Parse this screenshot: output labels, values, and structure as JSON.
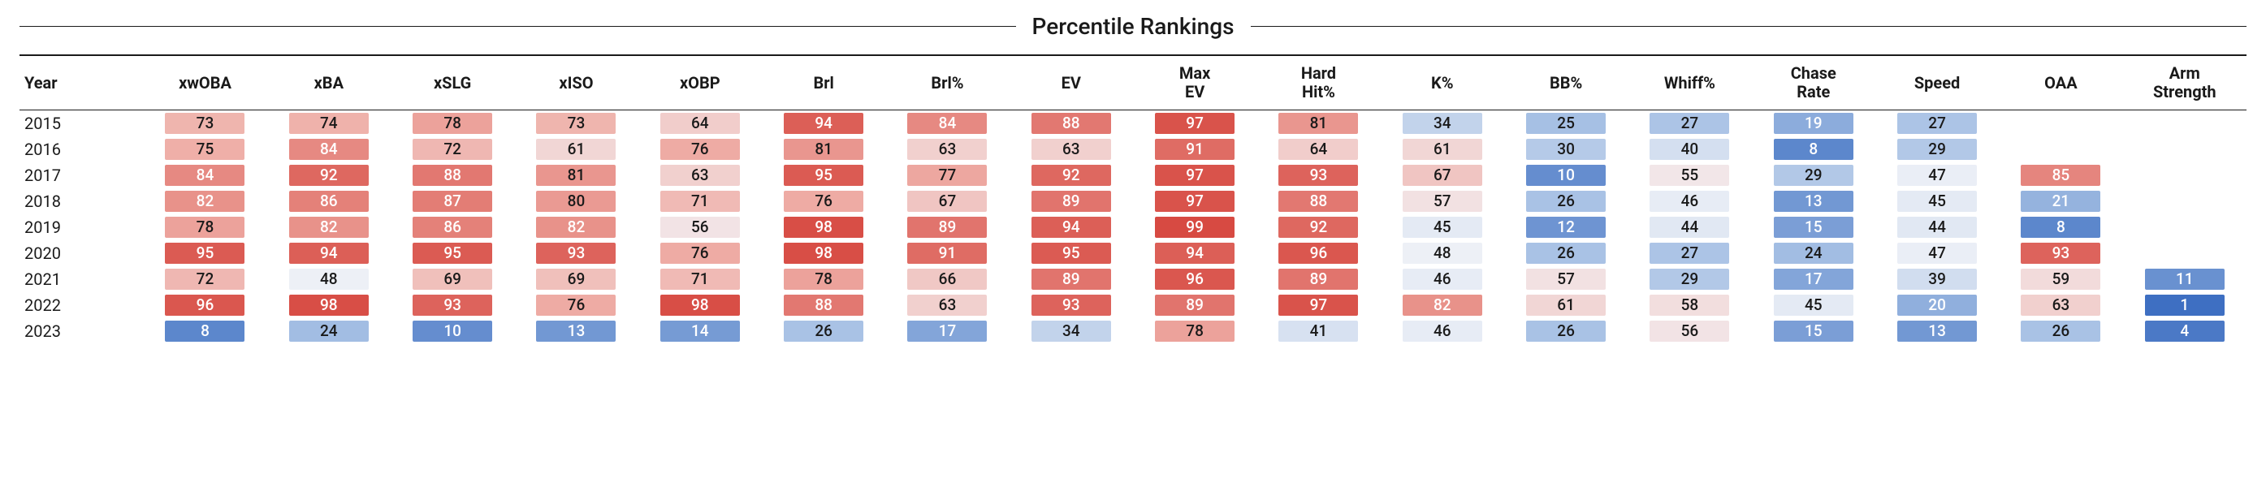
{
  "title": "Percentile Rankings",
  "columns": [
    "Year",
    "xwOBA",
    "xBA",
    "xSLG",
    "xISO",
    "xOBP",
    "Brl",
    "Brl%",
    "EV",
    "Max EV",
    "Hard Hit%",
    "K%",
    "BB%",
    "Whiff%",
    "Chase Rate",
    "Speed",
    "OAA",
    "Arm Strength"
  ],
  "rows": [
    {
      "year": "2015",
      "cells": [
        73,
        74,
        78,
        73,
        64,
        94,
        84,
        88,
        97,
        81,
        34,
        25,
        27,
        19,
        27,
        null,
        null
      ]
    },
    {
      "year": "2016",
      "cells": [
        75,
        84,
        72,
        61,
        76,
        81,
        63,
        63,
        91,
        64,
        61,
        30,
        40,
        8,
        29,
        null,
        null
      ]
    },
    {
      "year": "2017",
      "cells": [
        84,
        92,
        88,
        81,
        63,
        95,
        77,
        92,
        97,
        93,
        67,
        10,
        55,
        29,
        47,
        85,
        null
      ]
    },
    {
      "year": "2018",
      "cells": [
        82,
        86,
        87,
        80,
        71,
        76,
        67,
        89,
        97,
        88,
        57,
        26,
        46,
        13,
        45,
        21,
        null
      ]
    },
    {
      "year": "2019",
      "cells": [
        78,
        82,
        86,
        82,
        56,
        98,
        89,
        94,
        99,
        92,
        45,
        12,
        44,
        15,
        44,
        8,
        null
      ]
    },
    {
      "year": "2020",
      "cells": [
        95,
        94,
        95,
        93,
        76,
        98,
        91,
        95,
        94,
        96,
        48,
        26,
        27,
        24,
        47,
        93,
        null
      ]
    },
    {
      "year": "2021",
      "cells": [
        72,
        48,
        69,
        69,
        71,
        78,
        66,
        89,
        96,
        89,
        46,
        57,
        29,
        17,
        39,
        59,
        11
      ]
    },
    {
      "year": "2022",
      "cells": [
        96,
        98,
        93,
        76,
        98,
        88,
        63,
        93,
        89,
        97,
        82,
        61,
        58,
        45,
        20,
        63,
        1
      ]
    },
    {
      "year": "2023",
      "cells": [
        8,
        24,
        10,
        13,
        14,
        26,
        17,
        34,
        78,
        41,
        46,
        26,
        56,
        15,
        13,
        26,
        4
      ]
    }
  ],
  "style": {
    "title_fontsize": 28,
    "header_fontsize": 20,
    "cell_fontsize": 19,
    "background": "#ffffff",
    "gradient": {
      "low": {
        "bg": "#3e6fc2",
        "text": "#ffffff"
      },
      "midlow": {
        "bg": "#a6c0e4",
        "text": "#1a1a1a"
      },
      "mid": {
        "bg": "#f3f4f8",
        "text": "#1a1a1a"
      },
      "midhigh": {
        "bg": "#efafa8",
        "text": "#1a1a1a"
      },
      "high": {
        "bg": "#d6463e",
        "text": "#ffffff"
      }
    }
  }
}
